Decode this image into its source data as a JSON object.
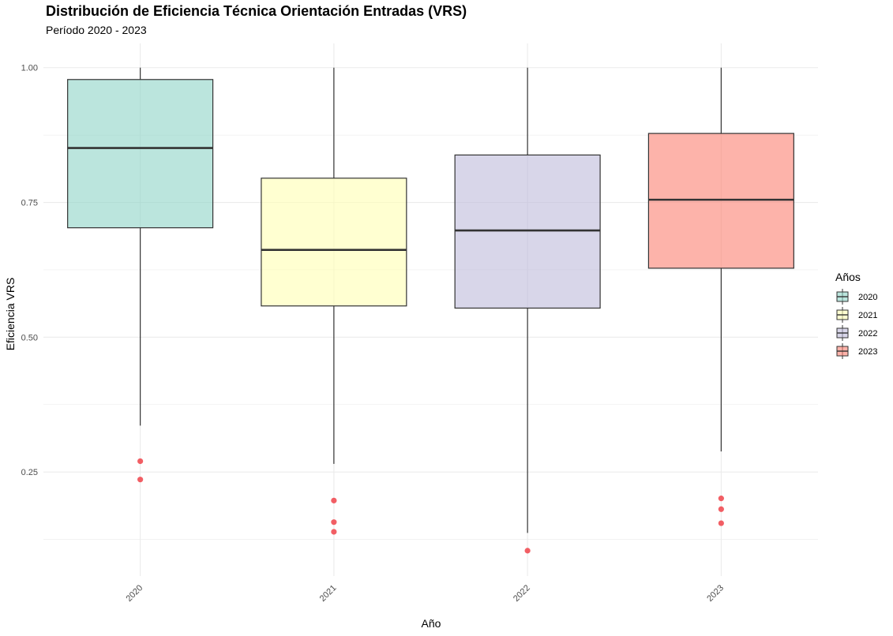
{
  "chart_data": {
    "type": "boxplot",
    "title": "Distribución de Eficiencia Técnica Orientación Entradas (VRS)",
    "subtitle": "Período 2020 - 2023",
    "xlabel": "Año",
    "ylabel": "Eficiencia VRS",
    "ylim": [
      0.057,
      1.045
    ],
    "yticks": [
      0.25,
      0.5,
      0.75,
      1.0
    ],
    "ytick_labels": [
      "0.25",
      "0.50",
      "0.75",
      "1.00"
    ],
    "grid": true,
    "legend": {
      "title": "Años",
      "position": "right",
      "items": [
        "2020",
        "2021",
        "2022",
        "2023"
      ]
    },
    "categories": [
      "2020",
      "2021",
      "2022",
      "2023"
    ],
    "boxes": [
      {
        "label": "2020",
        "color": "#8dd3c7",
        "whisker_low": 0.336,
        "q1": 0.703,
        "median": 0.851,
        "q3": 0.978,
        "whisker_high": 1.0,
        "outliers": [
          0.27,
          0.236
        ]
      },
      {
        "label": "2021",
        "color": "#ffffb3",
        "whisker_low": 0.265,
        "q1": 0.558,
        "median": 0.662,
        "q3": 0.795,
        "whisker_high": 1.0,
        "outliers": [
          0.197,
          0.157,
          0.139
        ]
      },
      {
        "label": "2022",
        "color": "#bebada",
        "whisker_low": 0.137,
        "q1": 0.554,
        "median": 0.698,
        "q3": 0.838,
        "whisker_high": 1.0,
        "outliers": [
          0.104
        ]
      },
      {
        "label": "2023",
        "color": "#fb8072",
        "whisker_low": 0.288,
        "q1": 0.628,
        "median": 0.755,
        "q3": 0.878,
        "whisker_high": 1.0,
        "outliers": [
          0.201,
          0.181,
          0.155
        ]
      }
    ],
    "colors": {
      "outlier": "#f0434a",
      "box_line": "#333333",
      "grid": "#ebebeb"
    }
  }
}
